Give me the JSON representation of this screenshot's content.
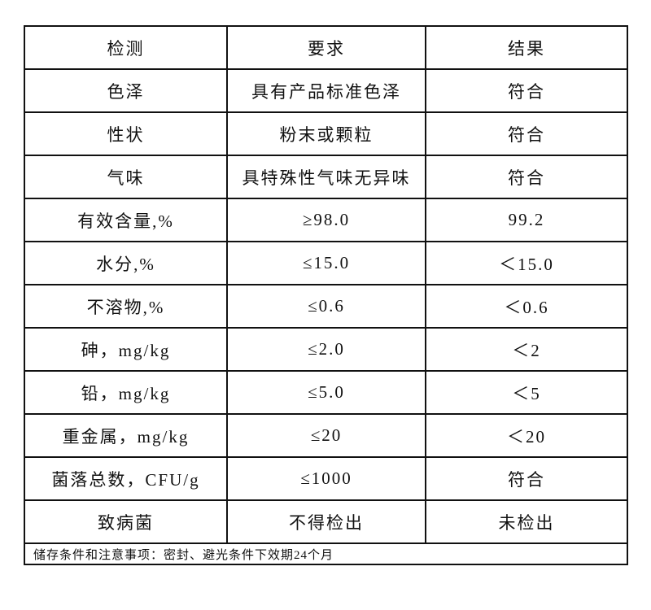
{
  "table": {
    "headers": [
      "检测",
      "要求",
      "结果"
    ],
    "rows": [
      [
        "色泽",
        "具有产品标准色泽",
        "符合"
      ],
      [
        "性状",
        "粉末或颗粒",
        "符合"
      ],
      [
        "气味",
        "具特殊性气味无异味",
        "符合"
      ],
      [
        "有效含量,%",
        "≥98.0",
        "99.2"
      ],
      [
        "水分,%",
        "≤15.0",
        "＜15.0"
      ],
      [
        "不溶物,%",
        "≤0.6",
        "＜0.6"
      ],
      [
        "砷，mg/kg",
        "≤2.0",
        "＜2"
      ],
      [
        "铅，mg/kg",
        "≤5.0",
        "＜5"
      ],
      [
        "重金属，mg/kg",
        "≤20",
        "＜20"
      ],
      [
        "菌落总数，CFU/g",
        "≤1000",
        "符合"
      ],
      [
        "致病菌",
        "不得检出",
        "未检出"
      ]
    ],
    "footer": "储存条件和注意事项：密封、避光条件下效期24个月"
  }
}
